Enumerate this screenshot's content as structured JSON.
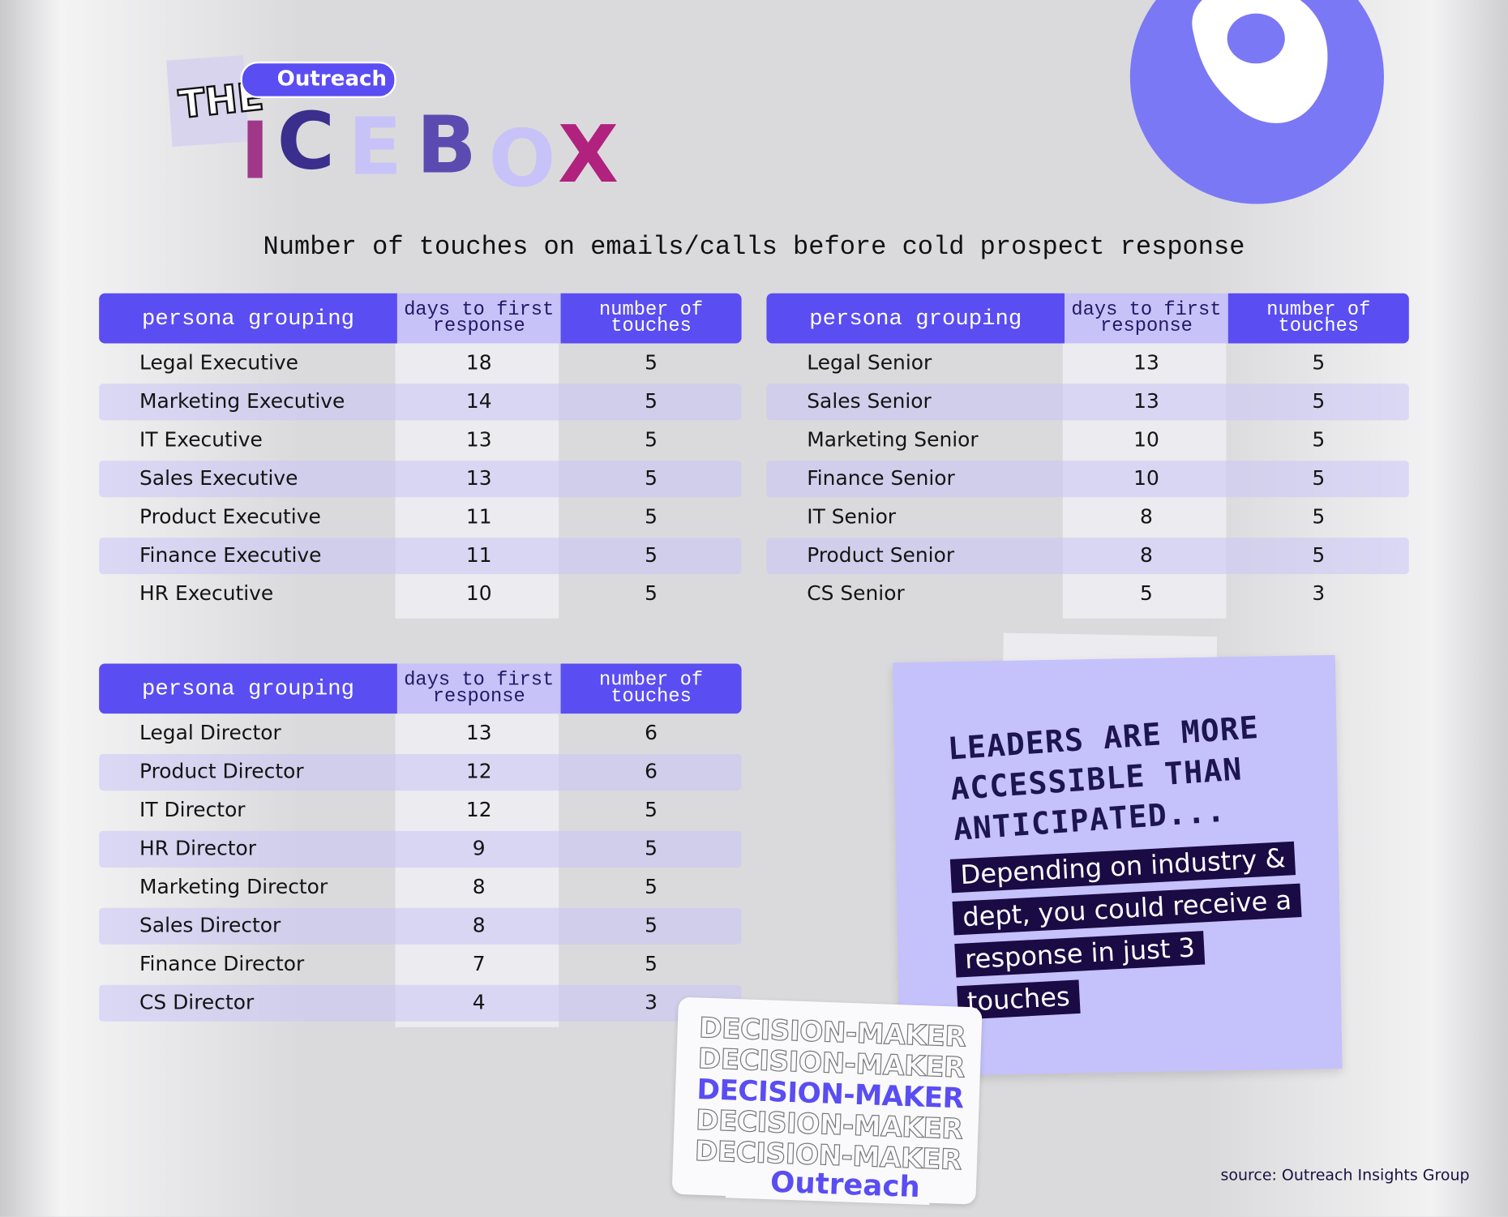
{
  "logo": {
    "the": "THE",
    "brand": "Outreach",
    "letters": [
      "I",
      "C",
      "E",
      "B",
      "O",
      "X"
    ]
  },
  "subtitle": "Number of touches on emails/calls before cold prospect response",
  "tables": [
    {
      "columns": [
        "persona grouping",
        "days to first response",
        "number of touches"
      ],
      "rows": [
        [
          "Legal Executive",
          18,
          5
        ],
        [
          "Marketing Executive",
          14,
          5
        ],
        [
          "IT Executive",
          13,
          5
        ],
        [
          "Sales Executive",
          13,
          5
        ],
        [
          "Product Executive",
          11,
          5
        ],
        [
          "Finance Executive",
          11,
          5
        ],
        [
          "HR Executive",
          10,
          5
        ]
      ]
    },
    {
      "columns": [
        "persona grouping",
        "days to first response",
        "number of touches"
      ],
      "rows": [
        [
          "Legal Senior",
          13,
          5
        ],
        [
          "Sales Senior",
          13,
          5
        ],
        [
          "Marketing Senior",
          10,
          5
        ],
        [
          "Finance Senior",
          10,
          5
        ],
        [
          "IT Senior",
          8,
          5
        ],
        [
          "Product Senior",
          8,
          5
        ],
        [
          "CS Senior",
          5,
          3
        ]
      ]
    },
    {
      "columns": [
        "persona grouping",
        "days to first response",
        "number of touches"
      ],
      "rows": [
        [
          "Legal Director",
          13,
          6
        ],
        [
          "Product Director",
          12,
          6
        ],
        [
          "IT Director",
          12,
          5
        ],
        [
          "HR Director",
          9,
          5
        ],
        [
          "Marketing Director",
          8,
          5
        ],
        [
          "Sales Director",
          8,
          5
        ],
        [
          "Finance Director",
          7,
          5
        ],
        [
          "CS Director",
          4,
          3
        ]
      ]
    }
  ],
  "note": {
    "headline": "LEADERS ARE MORE ACCESSIBLE THAN ANTICIPATED...",
    "body": "Depending on industry & dept, you could receive a response in just 3 touches"
  },
  "sticker": {
    "lines": [
      "DECISION-MAKER",
      "DECISION-MAKER",
      "DECISION-MAKER",
      "DECISION-MAKER",
      "DECISION-MAKER"
    ],
    "brand": "Outreach"
  },
  "source": "source: Outreach Insights Group"
}
